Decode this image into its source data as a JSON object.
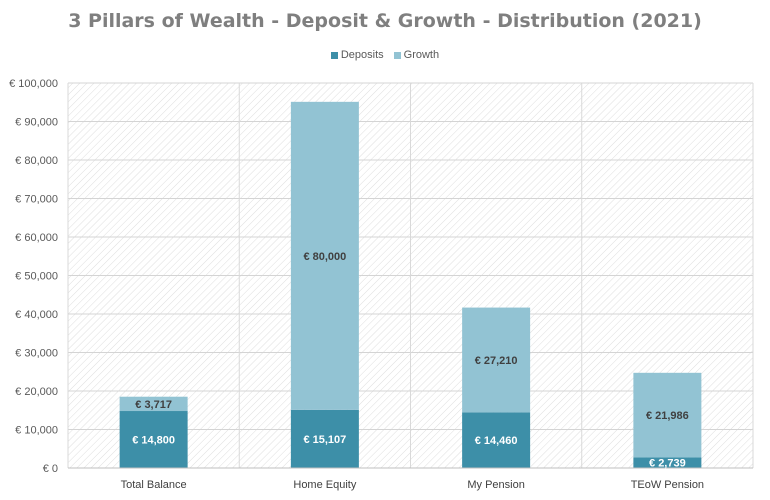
{
  "chart_data": {
    "type": "bar",
    "stacked": true,
    "title": "3 Pillars of Wealth - Deposit & Growth - Distribution  (2021)",
    "categories": [
      "Total Balance",
      "Home Equity",
      "My Pension",
      "TEoW Pension"
    ],
    "series": [
      {
        "name": "Deposits",
        "color": "#3d8fa8",
        "values": [
          14800,
          15107,
          14460,
          2739
        ],
        "labels": [
          "€ 14,800",
          "€ 15,107",
          "€ 14,460",
          "€ 2,739"
        ]
      },
      {
        "name": "Growth",
        "color": "#92c3d3",
        "values": [
          3717,
          80000,
          27210,
          21986
        ],
        "labels": [
          "€ 3,717",
          "€ 80,000",
          "€ 27,210",
          "€ 21,986"
        ]
      }
    ],
    "y_ticks": [
      "€ 0",
      "€ 10,000",
      "€ 20,000",
      "€ 30,000",
      "€ 40,000",
      "€ 50,000",
      "€ 60,000",
      "€ 70,000",
      "€ 80,000",
      "€ 90,000",
      "€ 100,000"
    ],
    "ylim": [
      0,
      100000
    ],
    "ystep": 10000,
    "grid": true,
    "legend_position": "top",
    "plot_background": "diagonal-hatch"
  }
}
